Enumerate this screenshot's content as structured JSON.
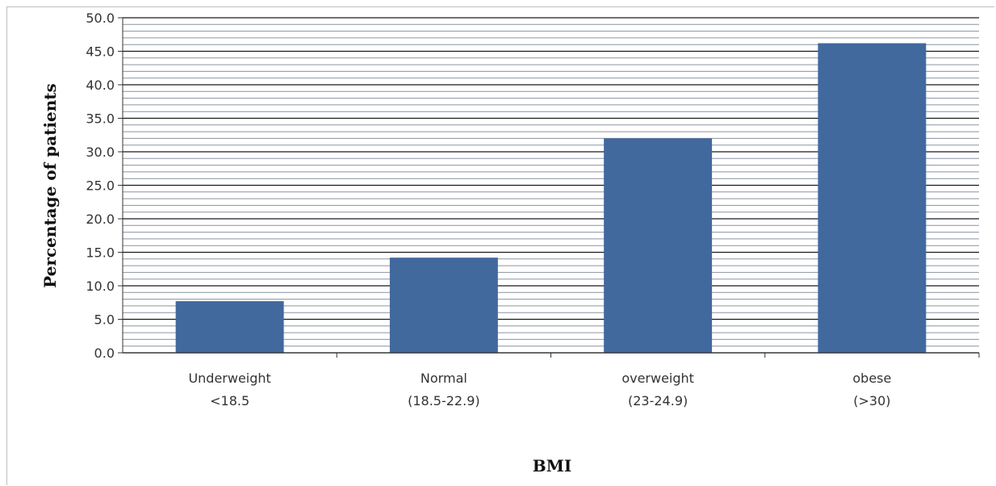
{
  "chart_data": {
    "type": "bar",
    "categories": [
      [
        "Underweight",
        "<18.5"
      ],
      [
        "Normal",
        "(18.5-22.9)"
      ],
      [
        "overweight",
        "(23-24.9)"
      ],
      [
        "obese",
        "(>30)"
      ]
    ],
    "values": [
      7.7,
      14.2,
      32.0,
      46.2
    ],
    "title": "",
    "xlabel": "BMI",
    "ylabel": "Percentage of patients",
    "ylim": [
      0,
      50
    ],
    "yticks": [
      "0.0",
      "5.0",
      "10.0",
      "15.0",
      "20.0",
      "25.0",
      "30.0",
      "35.0",
      "40.0",
      "45.0",
      "50.0"
    ],
    "major_step": 5,
    "minor_step": 1,
    "grid": true,
    "bar_color": "#41699e",
    "grid_major_color": "#1a1a1a",
    "grid_minor_color": "#8a93a3",
    "plot_bg": "#ffffff"
  }
}
